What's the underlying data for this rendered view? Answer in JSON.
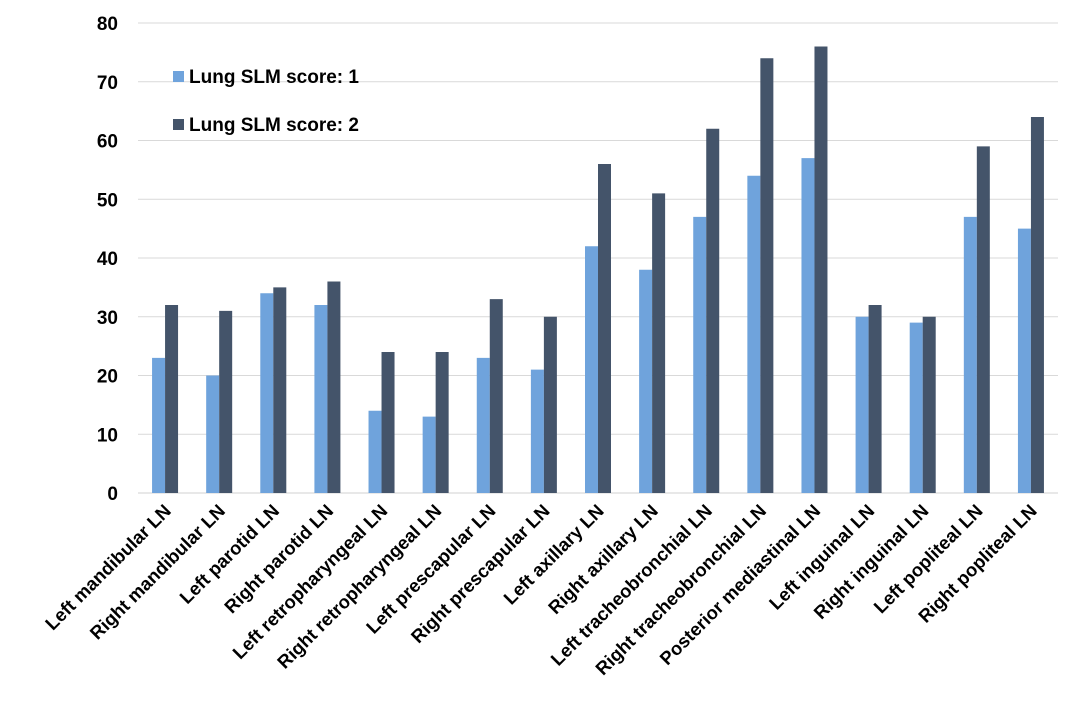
{
  "chart_data": {
    "type": "bar",
    "categories": [
      "Left mandibular LN",
      "Right mandibular LN",
      "Left parotid LN",
      "Right parotid LN",
      "Left retropharyngeal LN",
      "Right retropharyngeal LN",
      "Left prescapular LN",
      "Right prescapular LN",
      "Left axillary LN",
      "Right axillary LN",
      "Left tracheobronchial LN",
      "Right tracheobronchial LN",
      "Posterior mediastinal LN",
      "Left inguinal LN",
      "Right inguinal LN",
      "Left popliteal LN",
      "Right popliteal LN"
    ],
    "series": [
      {
        "name": "Lung SLM score: 1",
        "color": "#6fa3dc",
        "values": [
          23,
          20,
          34,
          32,
          14,
          13,
          23,
          21,
          42,
          38,
          47,
          54,
          57,
          30,
          29,
          47,
          45
        ]
      },
      {
        "name": "Lung SLM score: 2",
        "color": "#44546a",
        "values": [
          32,
          31,
          35,
          36,
          24,
          24,
          33,
          30,
          56,
          51,
          62,
          74,
          76,
          32,
          30,
          59,
          64
        ]
      }
    ],
    "ylim": [
      0,
      80
    ],
    "yticks": [
      0,
      10,
      20,
      30,
      40,
      50,
      60,
      70,
      80
    ],
    "grid": true,
    "legend_position": "top-left",
    "title": "",
    "xlabel": "",
    "ylabel": ""
  }
}
